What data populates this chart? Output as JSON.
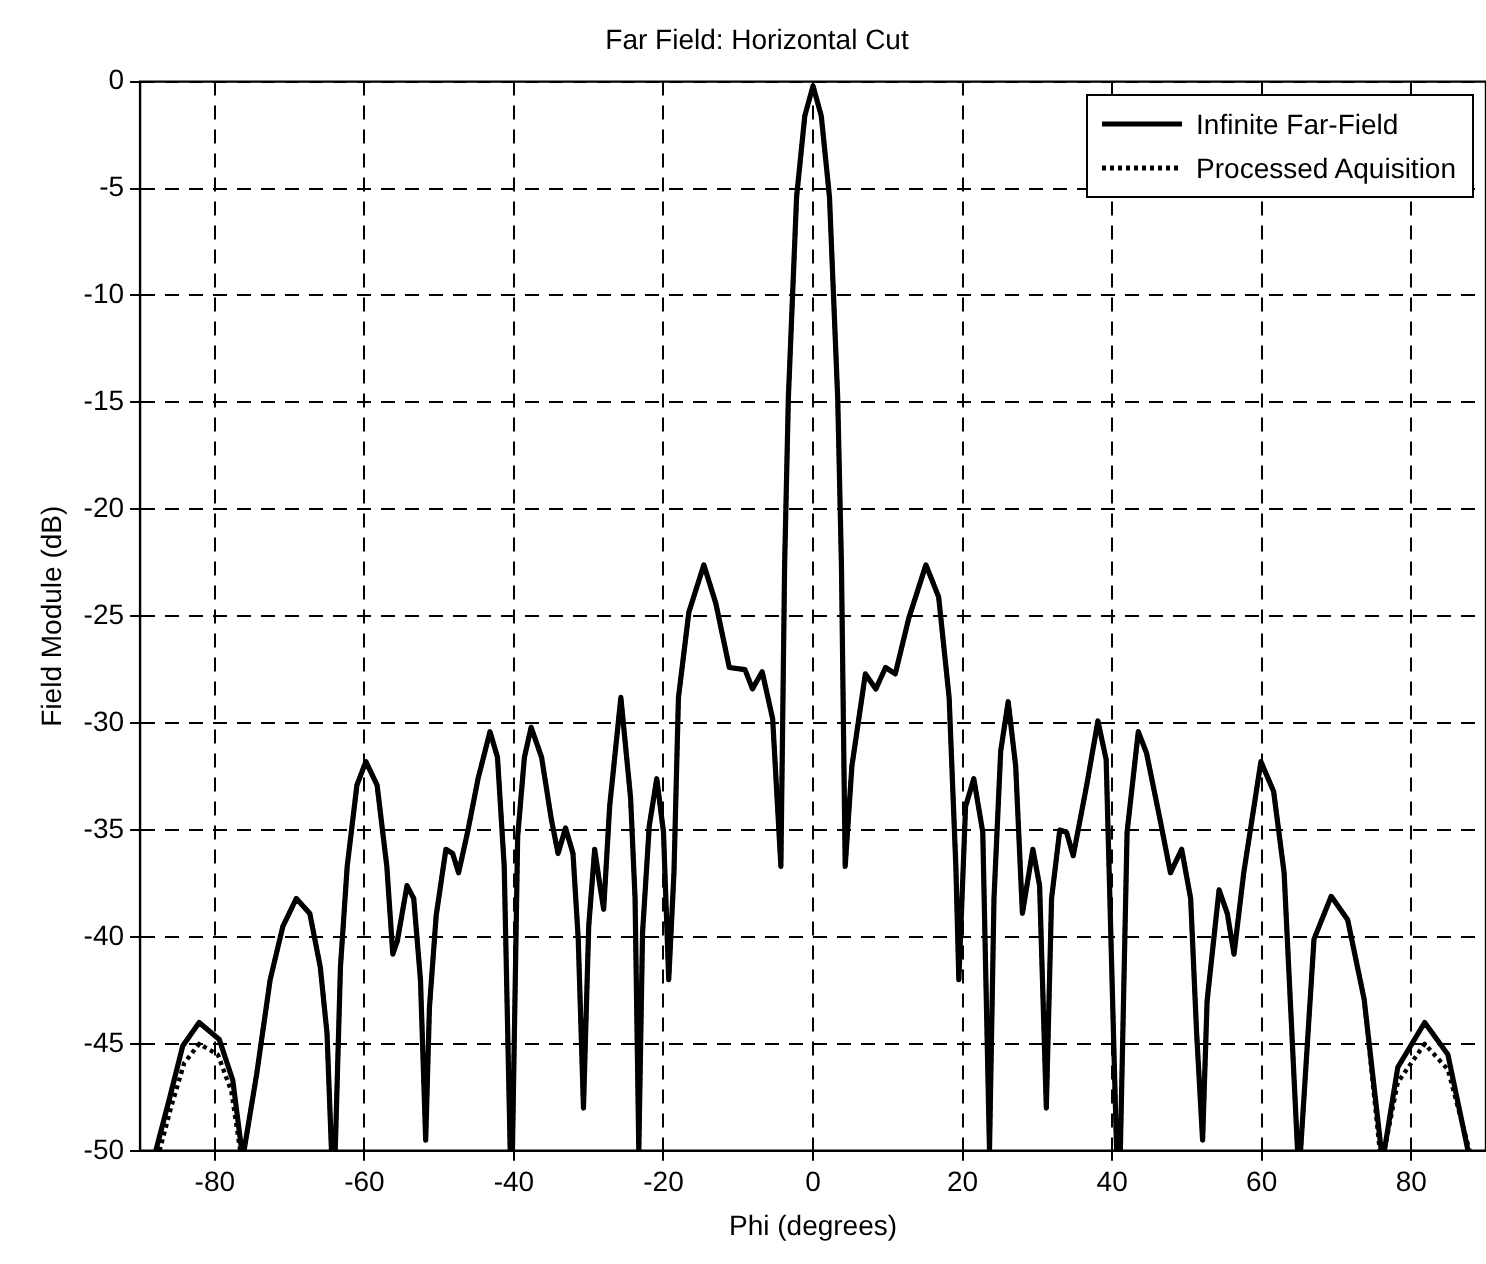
{
  "chart_data": {
    "type": "line",
    "title": "Far Field: Horizontal Cut",
    "xlabel": "Phi (degrees)",
    "ylabel": "Field Module (dB)",
    "xlim": [
      -90,
      90
    ],
    "xticks": [
      -80,
      -60,
      -40,
      -20,
      0,
      20,
      40,
      60,
      80
    ],
    "ylim": [
      -50,
      0
    ],
    "yticks": [
      -50,
      -45,
      -40,
      -35,
      -30,
      -25,
      -20,
      -15,
      -10,
      -5,
      0
    ],
    "grid": true,
    "legend": "top right",
    "marker": "none",
    "series": [
      {
        "name": "Infinite Far-Field",
        "color": "#000000",
        "line_style": "solid",
        "x": [
          -87.9,
          -86.1,
          -84.3,
          -82.1,
          -79.4,
          -77.6,
          -76.4,
          -76.1,
          -74.4,
          -72.6,
          -70.9,
          -69.1,
          -67.3,
          -65.9,
          -65,
          -64.4,
          -63.9,
          -63.2,
          -62.3,
          -61,
          -59.8,
          -58.3,
          -57,
          -56.2,
          -55.6,
          -54.3,
          -53.4,
          -52.5,
          -51.8,
          -51.3,
          -50.4,
          -49.1,
          -48.2,
          -47.4,
          -46.2,
          -44.8,
          -43.2,
          -42.2,
          -41.3,
          -40.5,
          -40.2,
          -39.5,
          -38.6,
          -37.7,
          -36.3,
          -35,
          -34.1,
          -33.1,
          -32.1,
          -31.4,
          -30.7,
          -30,
          -29.2,
          -28.5,
          -28,
          -27.2,
          -25.7,
          -24.4,
          -23.8,
          -23.3,
          -22.8,
          -21.9,
          -20.9,
          -20,
          -19.3,
          -18.6,
          -18,
          -16.6,
          -14.6,
          -13,
          -11.2,
          -9.1,
          -8.1,
          -6.8,
          -5.4,
          -4.3,
          -3.8,
          -3.3,
          -2.2,
          -1.1,
          0,
          1.1,
          2.2,
          3.3,
          3.8,
          4.3,
          5.2,
          7,
          8.4,
          9.7,
          11,
          12.8,
          15.1,
          16.8,
          18.2,
          19.1,
          19.5,
          20.4,
          21.5,
          22.7,
          23.6,
          24.2,
          25.1,
          26.1,
          27.1,
          28,
          29.4,
          30.3,
          31.2,
          31.9,
          33,
          33.9,
          34.8,
          36.6,
          38.1,
          39.2,
          40.6,
          41.1,
          42,
          43.5,
          44.6,
          46.4,
          47.8,
          49.3,
          50.5,
          51.3,
          52.1,
          52.7,
          54.3,
          55.4,
          56.3,
          57.6,
          59.9,
          61.6,
          63,
          64.8,
          65.2,
          67,
          69.3,
          71.5,
          73.7,
          76,
          76.4,
          78.2,
          81.8,
          84.9,
          87.6
        ],
        "values": [
          -50,
          -47.6,
          -45.1,
          -44,
          -44.8,
          -46.7,
          -50,
          -50,
          -46.4,
          -42,
          -39.5,
          -38.2,
          -38.9,
          -41.4,
          -44.5,
          -50,
          -50,
          -41.4,
          -36.7,
          -32.9,
          -31.8,
          -32.9,
          -36.7,
          -40.8,
          -40.2,
          -37.6,
          -38.2,
          -42,
          -49.5,
          -43.3,
          -39,
          -35.9,
          -36.1,
          -37,
          -35.1,
          -32.6,
          -30.4,
          -31.6,
          -36.7,
          -50,
          -50,
          -35.3,
          -31.6,
          -30.2,
          -31.6,
          -34.5,
          -36.1,
          -34.9,
          -36.1,
          -40.1,
          -48,
          -39.5,
          -35.9,
          -37.6,
          -38.7,
          -33.9,
          -28.8,
          -33.5,
          -38.2,
          -50,
          -39.8,
          -34.8,
          -32.6,
          -35.1,
          -42,
          -37,
          -28.8,
          -24.8,
          -22.6,
          -24.4,
          -27.4,
          -27.5,
          -28.4,
          -27.6,
          -29.8,
          -36.7,
          -22.6,
          -14.8,
          -5.4,
          -1.6,
          -0.2,
          -1.6,
          -5.4,
          -14.8,
          -22.6,
          -36.7,
          -32,
          -27.7,
          -28.4,
          -27.4,
          -27.7,
          -25.1,
          -22.6,
          -24.1,
          -28.8,
          -36.7,
          -42,
          -33.9,
          -32.6,
          -35.1,
          -50,
          -38.2,
          -31.3,
          -29,
          -32,
          -38.9,
          -35.9,
          -37.6,
          -48,
          -38.2,
          -35,
          -35.1,
          -36.2,
          -32.9,
          -29.9,
          -31.7,
          -50,
          -50,
          -35.1,
          -30.4,
          -31.4,
          -34.5,
          -37,
          -35.9,
          -38.2,
          -44.5,
          -49.5,
          -43,
          -37.8,
          -38.9,
          -40.8,
          -37,
          -31.8,
          -33.2,
          -37,
          -50,
          -50,
          -40.1,
          -38.1,
          -39.2,
          -42.9,
          -50,
          -50,
          -46.1,
          -44,
          -45.5,
          -50
        ]
      },
      {
        "name": "Processed Aquisition",
        "color": "#000000",
        "line_style": "dotted",
        "x": [
          -87.4,
          -85.8,
          -84.1,
          -82.1,
          -79.6,
          -77.8,
          -76.6,
          -76.1,
          -74.4,
          -72.6,
          -70.9,
          -69.1,
          -67.3,
          -65.9,
          -65,
          -64.4,
          -63.9,
          -63.2,
          -62.3,
          -61,
          -59.8,
          -58.3,
          -57,
          -56.2,
          -55.6,
          -54.3,
          -53.4,
          -52.5,
          -51.8,
          -51.3,
          -50.4,
          -49.1,
          -48.2,
          -47.4,
          -46.2,
          -44.8,
          -43.2,
          -42.2,
          -41.3,
          -40.5,
          -40.2,
          -39.5,
          -38.6,
          -37.7,
          -36.3,
          -35,
          -34.1,
          -33.1,
          -32.1,
          -31.4,
          -30.7,
          -30,
          -29.2,
          -28.5,
          -28,
          -27.2,
          -25.7,
          -24.4,
          -23.8,
          -23.3,
          -22.8,
          -21.9,
          -20.9,
          -20,
          -19.3,
          -18.6,
          -18,
          -16.6,
          -14.6,
          -13,
          -11.2,
          -9.1,
          -8.1,
          -6.8,
          -5.4,
          -4.3,
          -3.8,
          -3.3,
          -2.2,
          -1.1,
          0,
          1.1,
          2.2,
          3.3,
          3.8,
          4.3,
          5.2,
          7,
          8.4,
          9.7,
          11,
          12.8,
          15.1,
          16.8,
          18.2,
          19.1,
          19.5,
          20.4,
          21.5,
          22.7,
          23.6,
          24.2,
          25.1,
          26.1,
          27.1,
          28,
          29.4,
          30.3,
          31.2,
          31.9,
          33,
          33.9,
          34.8,
          36.6,
          38.1,
          39.2,
          40.6,
          41.1,
          42,
          43.5,
          44.6,
          46.4,
          47.8,
          49.3,
          50.5,
          51.3,
          52.1,
          52.7,
          54.3,
          55.4,
          56.3,
          57.6,
          59.9,
          61.6,
          63,
          64.8,
          65.2,
          67,
          69.3,
          71.5,
          73.7,
          75.8,
          76.4,
          78.2,
          81.8,
          84.9,
          87.8
        ],
        "values": [
          -50,
          -47.9,
          -45.9,
          -45,
          -45.5,
          -47.2,
          -50,
          -50,
          -46.4,
          -42,
          -39.5,
          -38.2,
          -38.9,
          -41.4,
          -44.5,
          -50,
          -50,
          -41.4,
          -36.7,
          -32.9,
          -31.8,
          -32.9,
          -36.7,
          -40.8,
          -40.2,
          -37.6,
          -38.2,
          -42,
          -49.5,
          -43.3,
          -39,
          -35.9,
          -36.1,
          -37,
          -35.1,
          -32.6,
          -30.4,
          -31.6,
          -36.7,
          -50,
          -50,
          -35.3,
          -31.6,
          -30.2,
          -31.6,
          -34.5,
          -36.1,
          -34.9,
          -36.1,
          -40.1,
          -48,
          -39.5,
          -35.9,
          -37.6,
          -38.7,
          -33.9,
          -28.8,
          -33.5,
          -38.2,
          -50,
          -39.8,
          -34.8,
          -32.6,
          -35.1,
          -42,
          -37,
          -28.8,
          -24.8,
          -22.6,
          -24.4,
          -27.4,
          -27.5,
          -28.4,
          -27.6,
          -29.8,
          -36.7,
          -22.6,
          -14.8,
          -5.4,
          -1.6,
          -0.2,
          -1.6,
          -5.4,
          -14.8,
          -22.6,
          -36.7,
          -32,
          -27.7,
          -28.4,
          -27.4,
          -27.7,
          -25.1,
          -22.6,
          -24.1,
          -28.8,
          -36.7,
          -42,
          -33.9,
          -32.6,
          -35.1,
          -50,
          -38.2,
          -31.3,
          -29,
          -32,
          -38.9,
          -35.9,
          -37.6,
          -48,
          -38.2,
          -35,
          -35.1,
          -36.2,
          -32.9,
          -29.9,
          -31.7,
          -50,
          -50,
          -35.1,
          -30.4,
          -31.4,
          -34.5,
          -37,
          -35.9,
          -38.2,
          -44.5,
          -49.5,
          -43,
          -37.8,
          -38.9,
          -40.8,
          -37,
          -31.8,
          -33.2,
          -37,
          -50,
          -50,
          -40.1,
          -38.1,
          -39.2,
          -42.9,
          -50,
          -50,
          -46.8,
          -45,
          -46.2,
          -50
        ]
      }
    ]
  }
}
